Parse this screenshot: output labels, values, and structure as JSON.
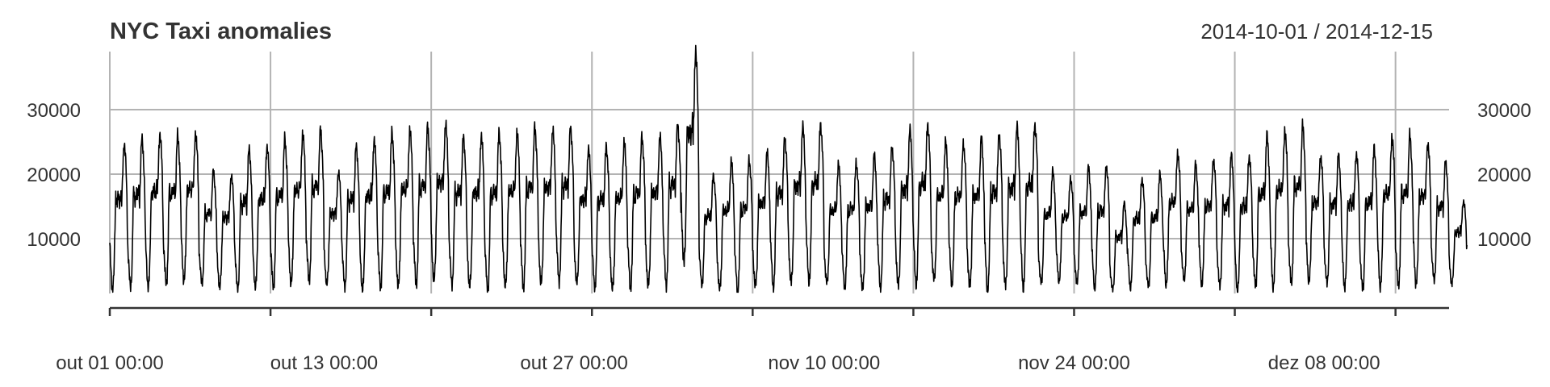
{
  "chart_data": {
    "type": "line",
    "title": "NYC Taxi anomalies",
    "date_range": "2014-10-01 / 2014-12-15",
    "x_start": "2014-10-01 00:00",
    "x_end": "2014-12-15 00:00",
    "ylim": [
      1500,
      39000
    ],
    "y_ticks": [
      10000,
      20000,
      30000
    ],
    "y_tick_labels": [
      "10000",
      "20000",
      "30000"
    ],
    "x_ticks": [
      "2014-10-01 00:00",
      "2014-10-10 00:00",
      "2014-10-19 00:00",
      "2014-10-28 00:00",
      "2014-11-06 00:00",
      "2014-11-15 00:00",
      "2014-11-24 00:00",
      "2014-12-03 00:00",
      "2014-12-12 00:00"
    ],
    "x_tick_labels": [
      {
        "date": "2014-10-01 00:00",
        "label": "out 01 00:00"
      },
      {
        "date": "2014-10-13 00:00",
        "label": "out 13 00:00"
      },
      {
        "date": "2014-10-27 00:00",
        "label": "out 27 00:00"
      },
      {
        "date": "2014-11-10 00:00",
        "label": "nov 10 00:00"
      },
      {
        "date": "2014-11-24 00:00",
        "label": "nov 24 00:00"
      },
      {
        "date": "2014-12-08 00:00",
        "label": "dez 08 00:00"
      }
    ],
    "grid": true,
    "legend": "none",
    "series": [
      {
        "color": "#000000",
        "daily_peaks": [
          25000,
          25500,
          26500,
          26000,
          26500,
          20500,
          20000,
          24000,
          24500,
          25500,
          26500,
          27000,
          20500,
          24500,
          25500,
          26500,
          27000,
          27500,
          28000,
          26000,
          26000,
          26500,
          26500,
          27500,
          27000,
          27500,
          24000,
          24500,
          25000,
          26000,
          26000,
          28000,
          39000,
          20000,
          22000,
          22500,
          23500,
          26000,
          27500,
          28000,
          21500,
          22000,
          23000,
          24500,
          27000,
          28000,
          25000,
          25000,
          25500,
          26500,
          27500,
          28000,
          20500,
          19500,
          21000,
          21500,
          15500,
          19500,
          20000,
          23500,
          21500,
          22500,
          23000,
          23000,
          26000,
          27000,
          27500,
          23000,
          23000,
          23500,
          24000,
          26000,
          26000,
          25000,
          22000,
          16000
        ],
        "daily_troughs": [
          2000,
          2500,
          2500,
          3000,
          3500,
          3000,
          2500,
          2000,
          2500,
          2500,
          3000,
          3500,
          3000,
          2500,
          2000,
          2500,
          2500,
          3000,
          3500,
          3000,
          2500,
          2000,
          2500,
          2500,
          3000,
          3500,
          3000,
          2500,
          2000,
          2500,
          2500,
          3000,
          6000,
          3000,
          2000,
          2000,
          2500,
          2500,
          3000,
          3500,
          3000,
          2500,
          2000,
          2500,
          2500,
          3000,
          3500,
          3000,
          2500,
          2000,
          2500,
          2500,
          3000,
          3500,
          3000,
          2500,
          2000,
          2500,
          2500,
          3000,
          3500,
          3000,
          2500,
          2000,
          2500,
          2500,
          3000,
          3500,
          3000,
          2500,
          2000,
          2500,
          2500,
          3000,
          3500,
          3000
        ]
      }
    ]
  }
}
